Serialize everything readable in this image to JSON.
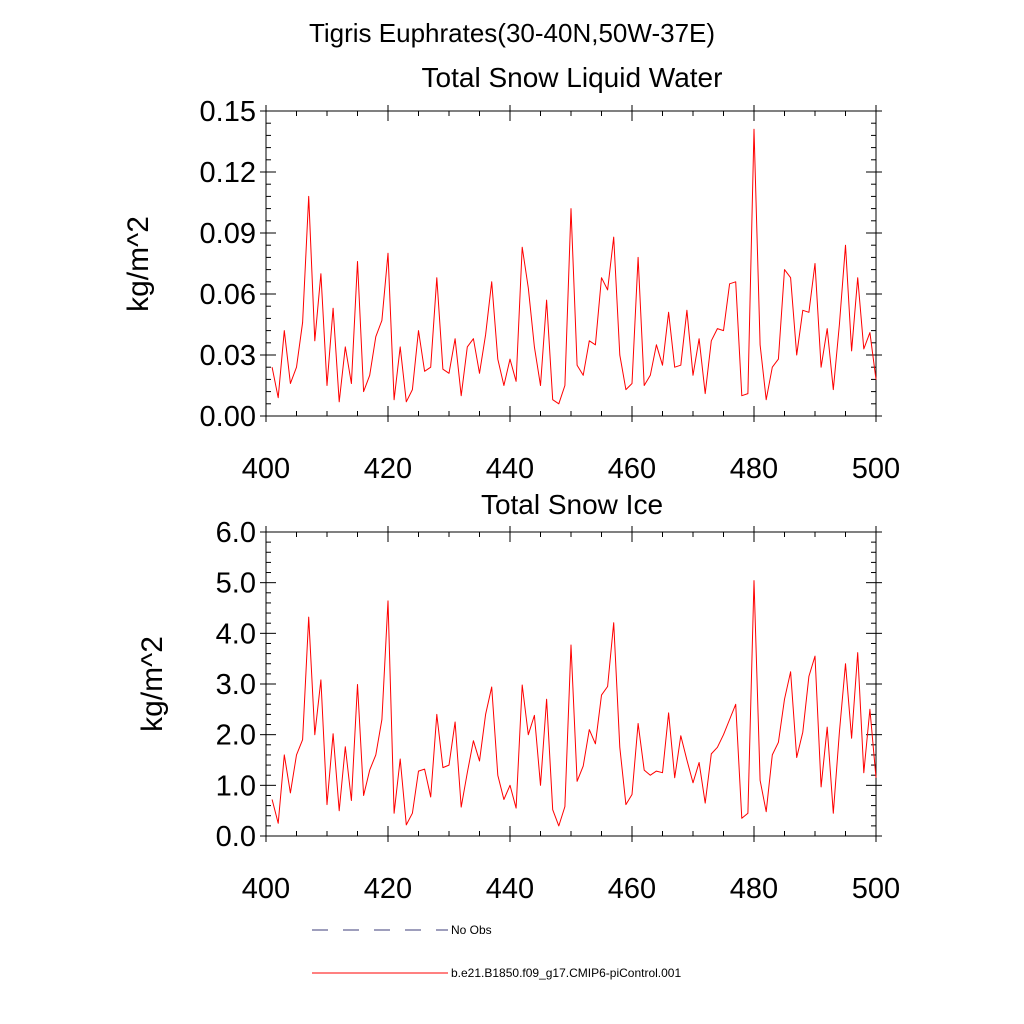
{
  "page_title": "Tigris Euphrates(30-40N,50W-37E)",
  "chart_data": [
    {
      "type": "line",
      "title": "Total Snow Liquid Water",
      "xlabel": "",
      "ylabel": "kg/m^2",
      "xlim": [
        400,
        500
      ],
      "ylim": [
        0,
        0.15
      ],
      "x_ticks": [
        "400",
        "420",
        "440",
        "460",
        "480",
        "500"
      ],
      "y_ticks": [
        "0.00",
        "0.03",
        "0.06",
        "0.09",
        "0.12",
        "0.15"
      ],
      "grid": false,
      "series": [
        {
          "name": "b.e21.B1850.f09_g17.CMIP6-piControl.001",
          "color": "#ff0000",
          "x_start": 401,
          "values": [
            0.024,
            0.009,
            0.042,
            0.016,
            0.024,
            0.046,
            0.108,
            0.037,
            0.07,
            0.015,
            0.053,
            0.007,
            0.034,
            0.016,
            0.076,
            0.012,
            0.02,
            0.039,
            0.047,
            0.08,
            0.008,
            0.034,
            0.007,
            0.013,
            0.042,
            0.022,
            0.024,
            0.068,
            0.023,
            0.021,
            0.038,
            0.01,
            0.034,
            0.038,
            0.021,
            0.04,
            0.066,
            0.028,
            0.015,
            0.028,
            0.017,
            0.083,
            0.063,
            0.034,
            0.015,
            0.057,
            0.008,
            0.006,
            0.015,
            0.102,
            0.025,
            0.02,
            0.037,
            0.035,
            0.068,
            0.062,
            0.088,
            0.03,
            0.013,
            0.016,
            0.078,
            0.015,
            0.02,
            0.035,
            0.025,
            0.051,
            0.024,
            0.025,
            0.052,
            0.02,
            0.038,
            0.011,
            0.037,
            0.043,
            0.042,
            0.065,
            0.066,
            0.01,
            0.011,
            0.141,
            0.035,
            0.008,
            0.024,
            0.028,
            0.072,
            0.068,
            0.03,
            0.052,
            0.051,
            0.075,
            0.024,
            0.043,
            0.013,
            0.045,
            0.084,
            0.032,
            0.068,
            0.033,
            0.041,
            0.018
          ]
        }
      ]
    },
    {
      "type": "line",
      "title": "Total Snow Ice",
      "xlabel": "",
      "ylabel": "kg/m^2",
      "xlim": [
        400,
        500
      ],
      "ylim": [
        0,
        6.0
      ],
      "x_ticks": [
        "400",
        "420",
        "440",
        "460",
        "480",
        "500"
      ],
      "y_ticks": [
        "0.0",
        "1.0",
        "2.0",
        "3.0",
        "4.0",
        "5.0",
        "6.0"
      ],
      "grid": false,
      "series": [
        {
          "name": "b.e21.B1850.f09_g17.CMIP6-piControl.001",
          "color": "#ff0000",
          "x_start": 401,
          "values": [
            0.72,
            0.25,
            1.6,
            0.85,
            1.6,
            1.9,
            4.32,
            2.0,
            3.08,
            0.62,
            2.02,
            0.5,
            1.76,
            0.7,
            2.99,
            0.8,
            1.3,
            1.6,
            2.3,
            4.64,
            0.45,
            1.52,
            0.22,
            0.45,
            1.28,
            1.32,
            0.77,
            2.4,
            1.35,
            1.4,
            2.25,
            0.57,
            1.25,
            1.88,
            1.48,
            2.4,
            2.94,
            1.2,
            0.72,
            1.0,
            0.55,
            2.98,
            2.0,
            2.38,
            1.0,
            2.7,
            0.52,
            0.2,
            0.58,
            3.77,
            1.08,
            1.38,
            2.1,
            1.82,
            2.78,
            2.95,
            4.21,
            1.75,
            0.62,
            0.82,
            2.22,
            1.3,
            1.2,
            1.28,
            1.25,
            2.43,
            1.15,
            1.98,
            1.5,
            1.05,
            1.45,
            0.65,
            1.62,
            1.75,
            2.0,
            2.3,
            2.6,
            0.35,
            0.45,
            5.04,
            1.1,
            0.48,
            1.6,
            1.85,
            2.7,
            3.24,
            1.55,
            2.05,
            3.15,
            3.55,
            0.97,
            2.15,
            0.45,
            2.05,
            3.4,
            1.93,
            3.62,
            1.25,
            2.5,
            1.15
          ]
        }
      ]
    }
  ],
  "legend": {
    "placement": "bottom",
    "items": [
      {
        "label": "No Obs",
        "style": "dashed",
        "color": "#3c3c78"
      },
      {
        "label": "b.e21.B1850.f09_g17.CMIP6-piControl.001",
        "style": "solid",
        "color": "#ff0000"
      }
    ]
  }
}
